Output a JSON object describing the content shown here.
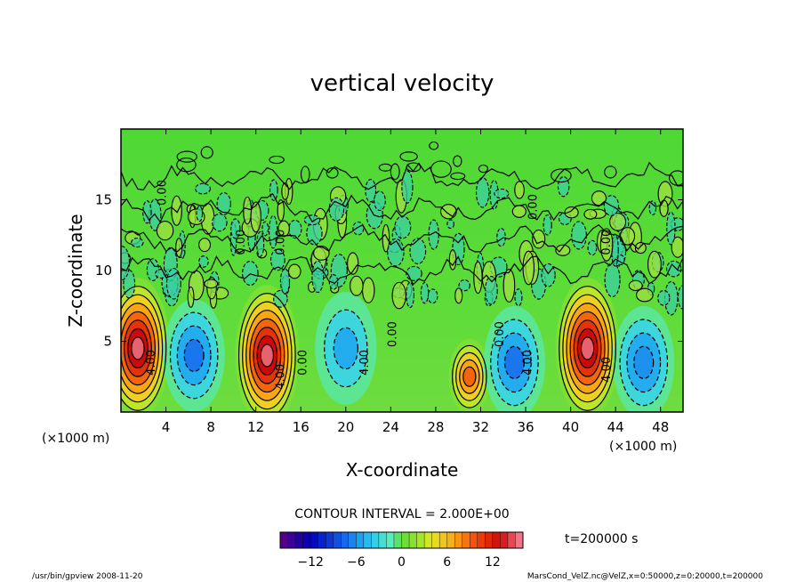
{
  "chart_data": {
    "type": "heatmap",
    "title": "vertical velocity",
    "xlabel": "X-coordinate",
    "ylabel": "Z-coordinate",
    "x_unit_left": "(×1000 m)",
    "x_unit_right": "(×1000 m)",
    "xlim": [
      0,
      50
    ],
    "ylim": [
      0,
      20
    ],
    "xticks": [
      4,
      8,
      12,
      16,
      20,
      24,
      28,
      32,
      36,
      40,
      44,
      48
    ],
    "yticks": [
      5,
      10,
      15
    ],
    "contour_interval_text": "CONTOUR INTERVAL = 2.000E+00",
    "time_text": "t=200000 s",
    "colorbar": {
      "range": [
        -16,
        16
      ],
      "ticks": [
        -12,
        -6,
        0,
        6,
        12
      ]
    },
    "cells": [
      {
        "x": 1.5,
        "z": 4.5,
        "w": 15
      },
      {
        "x": 6.5,
        "z": 4.0,
        "w": -7
      },
      {
        "x": 13.0,
        "z": 4.0,
        "w": 15
      },
      {
        "x": 20.0,
        "z": 4.5,
        "w": -5
      },
      {
        "x": 31.0,
        "z": 2.5,
        "w": 9
      },
      {
        "x": 35.0,
        "z": 3.5,
        "w": -7
      },
      {
        "x": 41.5,
        "z": 4.5,
        "w": 15
      },
      {
        "x": 46.5,
        "z": 3.5,
        "w": -6
      }
    ],
    "contour_labels": [
      {
        "x": 3.0,
        "z": 3.5,
        "text": "4.00"
      },
      {
        "x": 14.5,
        "z": 2.5,
        "text": "4.00"
      },
      {
        "x": 22.0,
        "z": 3.5,
        "text": "4.00"
      },
      {
        "x": 36.5,
        "z": 3.5,
        "text": "4.00"
      },
      {
        "x": 43.5,
        "z": 3.0,
        "text": "4.00"
      },
      {
        "x": 16.5,
        "z": 3.5,
        "text": "0.00"
      },
      {
        "x": 24.5,
        "z": 5.5,
        "text": "0.00"
      },
      {
        "x": 34.0,
        "z": 5.5,
        "text": "0.00"
      },
      {
        "x": 11.0,
        "z": 12.0,
        "text": "0.00"
      },
      {
        "x": 14.5,
        "z": 12.0,
        "text": "0.00"
      },
      {
        "x": 37.0,
        "z": 14.5,
        "text": "0.00"
      },
      {
        "x": 43.5,
        "z": 12.0,
        "text": "0.00"
      },
      {
        "x": 4.0,
        "z": 15.5,
        "text": "0.00"
      }
    ]
  },
  "footer": {
    "left": "/usr/bin/gpview   2008-11-20",
    "right": "MarsCond_VelZ.nc@VelZ,x=0:50000,z=0:20000,t=200000"
  }
}
